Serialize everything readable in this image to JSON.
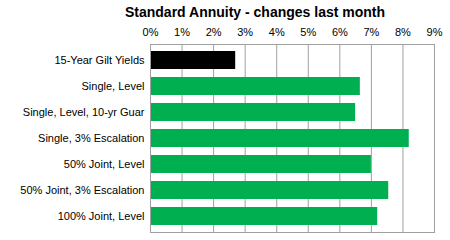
{
  "chart_data": {
    "type": "bar",
    "orientation": "horizontal",
    "title": "Standard Annuity - changes last month",
    "categories": [
      "15-Year Gilt Yields",
      "Single, Level",
      "Single, Level, 10-yr Guar",
      "Single, 3% Escalation",
      "50% Joint, Level",
      "50% Joint, 3% Escalation",
      "100% Joint, Level"
    ],
    "values": [
      2.7,
      6.65,
      6.5,
      8.2,
      7.0,
      7.55,
      7.2
    ],
    "colors": [
      "#000000",
      "#00b050",
      "#00b050",
      "#00b050",
      "#00b050",
      "#00b050",
      "#00b050"
    ],
    "xlim": [
      0,
      9
    ],
    "xticks": [
      {
        "value": 0,
        "label": "0%"
      },
      {
        "value": 1,
        "label": "1%"
      },
      {
        "value": 2,
        "label": "2%"
      },
      {
        "value": 3,
        "label": "3%"
      },
      {
        "value": 4,
        "label": "4%"
      },
      {
        "value": 5,
        "label": "5%"
      },
      {
        "value": 6,
        "label": "6%"
      },
      {
        "value": 7,
        "label": "7%"
      },
      {
        "value": 8,
        "label": "8%"
      },
      {
        "value": 9,
        "label": "9%"
      }
    ],
    "grid": true
  }
}
